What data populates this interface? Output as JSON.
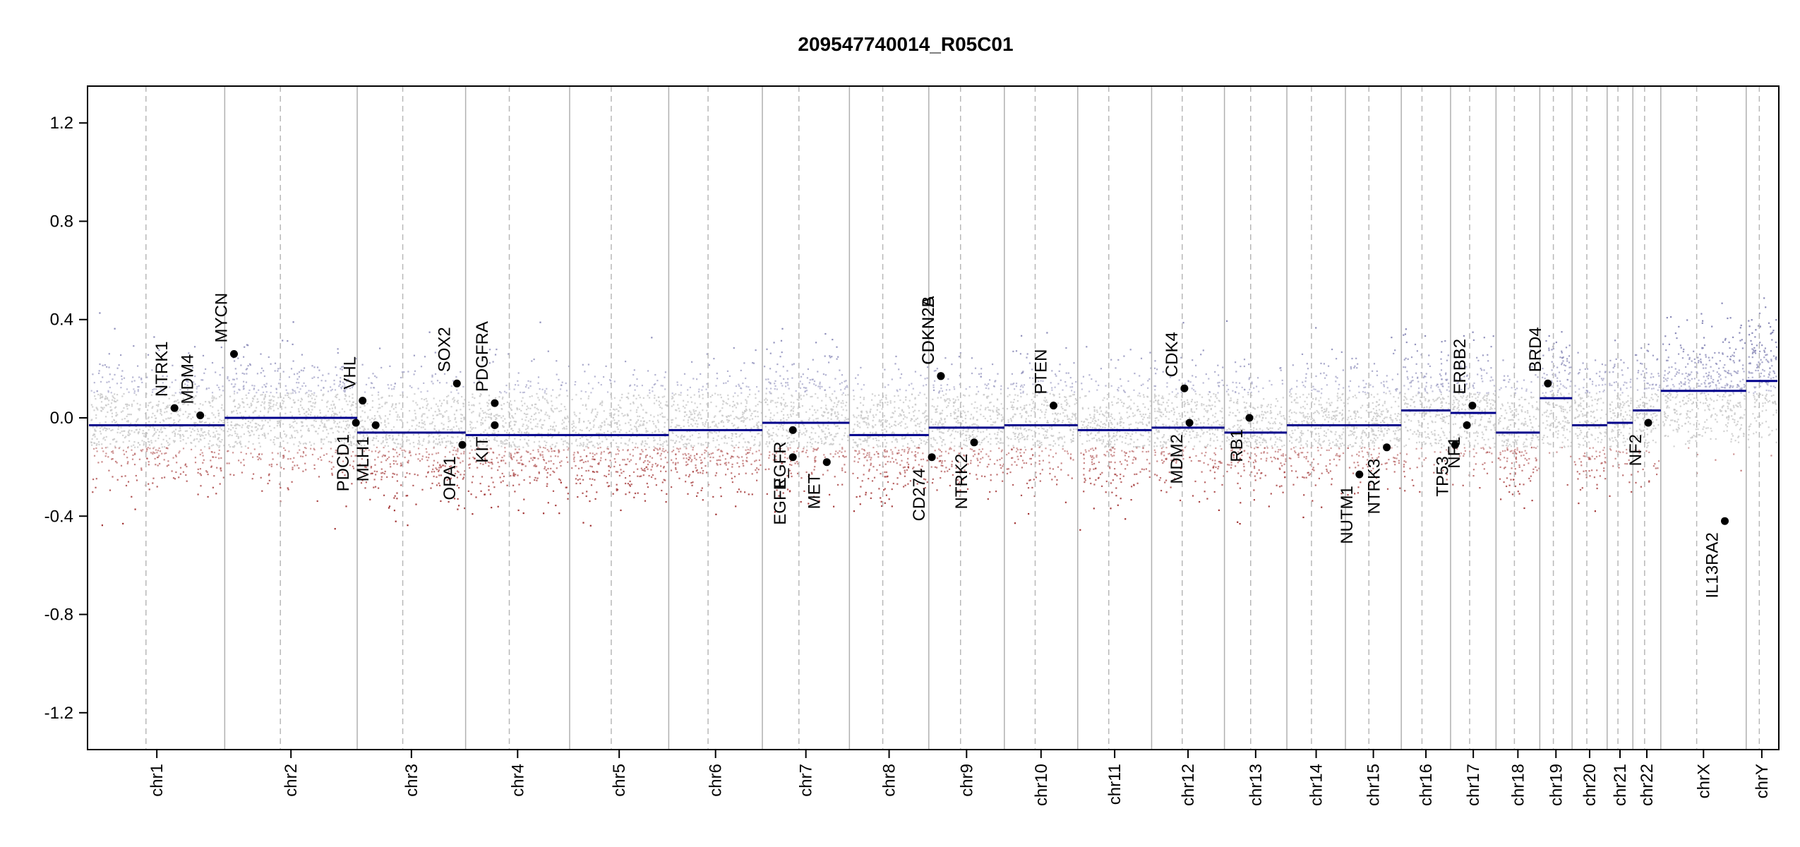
{
  "chart_data": {
    "type": "scatter",
    "title": "209547740014_R05C01",
    "xlabel": "",
    "ylabel": "",
    "ylim": [
      -1.35,
      1.35
    ],
    "yticks": [
      "1.2",
      "0.8",
      "0.4",
      "0.0",
      "-0.4",
      "-0.8",
      "-1.2"
    ],
    "grid": false,
    "colors": {
      "segment": "#00008b",
      "gain": "#8a8ab8",
      "neutral": "#c8c8c8",
      "loss": "#a03030",
      "boundary": "#b0b0b0",
      "centromere": "#b8b8b8",
      "gene_point": "#000000"
    },
    "chromosomes": [
      {
        "name": "chr1",
        "size": 248
      },
      {
        "name": "chr2",
        "size": 242
      },
      {
        "name": "chr3",
        "size": 198
      },
      {
        "name": "chr4",
        "size": 190
      },
      {
        "name": "chr5",
        "size": 181
      },
      {
        "name": "chr6",
        "size": 171
      },
      {
        "name": "chr7",
        "size": 159
      },
      {
        "name": "chr8",
        "size": 145
      },
      {
        "name": "chr9",
        "size": 138
      },
      {
        "name": "chr10",
        "size": 134
      },
      {
        "name": "chr11",
        "size": 135
      },
      {
        "name": "chr12",
        "size": 133
      },
      {
        "name": "chr13",
        "size": 114
      },
      {
        "name": "chr14",
        "size": 107
      },
      {
        "name": "chr15",
        "size": 102
      },
      {
        "name": "chr16",
        "size": 90
      },
      {
        "name": "chr17",
        "size": 83
      },
      {
        "name": "chr18",
        "size": 80
      },
      {
        "name": "chr19",
        "size": 59
      },
      {
        "name": "chr20",
        "size": 64
      },
      {
        "name": "chr21",
        "size": 47
      },
      {
        "name": "chr22",
        "size": 51
      },
      {
        "name": "chrX",
        "size": 156
      },
      {
        "name": "chrY",
        "size": 57
      }
    ],
    "segments": [
      {
        "chr": "chr1",
        "value": -0.03
      },
      {
        "chr": "chr2",
        "value": 0.0
      },
      {
        "chr": "chr3",
        "value": -0.06
      },
      {
        "chr": "chr4",
        "value": -0.07
      },
      {
        "chr": "chr5",
        "value": -0.07
      },
      {
        "chr": "chr6",
        "value": -0.05
      },
      {
        "chr": "chr7",
        "value": -0.02
      },
      {
        "chr": "chr8",
        "value": -0.07
      },
      {
        "chr": "chr9",
        "value": -0.04
      },
      {
        "chr": "chr10",
        "value": -0.03
      },
      {
        "chr": "chr11",
        "value": -0.05
      },
      {
        "chr": "chr12",
        "value": -0.04
      },
      {
        "chr": "chr13",
        "value": -0.06
      },
      {
        "chr": "chr14",
        "value": -0.03
      },
      {
        "chr": "chr15",
        "value": -0.03
      },
      {
        "chr": "chr16",
        "value": 0.03
      },
      {
        "chr": "chr17",
        "value": 0.02
      },
      {
        "chr": "chr18",
        "value": -0.06
      },
      {
        "chr": "chr19",
        "value": 0.08
      },
      {
        "chr": "chr20",
        "value": -0.03
      },
      {
        "chr": "chr21",
        "value": -0.02
      },
      {
        "chr": "chr22",
        "value": 0.03
      },
      {
        "chr": "chrX",
        "value": 0.11
      },
      {
        "chr": "chrY",
        "value": 0.15
      }
    ],
    "genes": [
      {
        "name": "NTRK1",
        "chr": "chr1",
        "pos": 0.63,
        "value": 0.04,
        "side": "above"
      },
      {
        "name": "MDM4",
        "chr": "chr1",
        "pos": 0.82,
        "value": 0.01,
        "side": "above"
      },
      {
        "name": "MYCN",
        "chr": "chr2",
        "pos": 0.07,
        "value": 0.26,
        "side": "above"
      },
      {
        "name": "VHL",
        "chr": "chr3",
        "pos": 0.05,
        "value": 0.07,
        "side": "above"
      },
      {
        "name": "PDCD1",
        "chr": "chr2",
        "pos": 0.99,
        "value": -0.02,
        "side": "below"
      },
      {
        "name": "MLH1",
        "chr": "chr3",
        "pos": 0.17,
        "value": -0.03,
        "side": "below"
      },
      {
        "name": "SOX2",
        "chr": "chr3",
        "pos": 0.92,
        "value": 0.14,
        "side": "above"
      },
      {
        "name": "OPA1",
        "chr": "chr3",
        "pos": 0.97,
        "value": -0.11,
        "side": "below"
      },
      {
        "name": "PDGFRA",
        "chr": "chr4",
        "pos": 0.28,
        "value": 0.06,
        "side": "above"
      },
      {
        "name": "KIT",
        "chr": "chr4",
        "pos": 0.28,
        "value": -0.03,
        "side": "below"
      },
      {
        "name": "EGFR",
        "chr": "chr7",
        "pos": 0.35,
        "value": -0.05,
        "side": "below"
      },
      {
        "name": "EGFR_",
        "chr": "chr7",
        "pos": 0.35,
        "value": -0.16,
        "side": "below"
      },
      {
        "name": "MET",
        "chr": "chr7",
        "pos": 0.74,
        "value": -0.18,
        "side": "below"
      },
      {
        "name": "CDKN2A",
        "chr": "chr9",
        "pos": 0.16,
        "value": 0.17,
        "side": "above"
      },
      {
        "name": "CDKN2B",
        "chr": "chr9",
        "pos": 0.16,
        "value": 0.17,
        "side": "above"
      },
      {
        "name": "CD274",
        "chr": "chr9",
        "pos": 0.04,
        "value": -0.16,
        "side": "below"
      },
      {
        "name": "NTRK2",
        "chr": "chr9",
        "pos": 0.6,
        "value": -0.1,
        "side": "below"
      },
      {
        "name": "PTEN",
        "chr": "chr10",
        "pos": 0.67,
        "value": 0.05,
        "side": "above"
      },
      {
        "name": "CDK4",
        "chr": "chr12",
        "pos": 0.45,
        "value": 0.12,
        "side": "above"
      },
      {
        "name": "MDM2",
        "chr": "chr12",
        "pos": 0.52,
        "value": -0.02,
        "side": "below"
      },
      {
        "name": "RB1",
        "chr": "chr13",
        "pos": 0.4,
        "value": 0.0,
        "side": "below"
      },
      {
        "name": "NUTM1",
        "chr": "chr15",
        "pos": 0.25,
        "value": -0.23,
        "side": "below"
      },
      {
        "name": "NTRK3",
        "chr": "chr15",
        "pos": 0.74,
        "value": -0.12,
        "side": "below"
      },
      {
        "name": "TP53",
        "chr": "chr17",
        "pos": 0.1,
        "value": -0.11,
        "side": "below"
      },
      {
        "name": "ERBB2",
        "chr": "chr17",
        "pos": 0.48,
        "value": 0.05,
        "side": "above"
      },
      {
        "name": "NF1",
        "chr": "chr17",
        "pos": 0.36,
        "value": -0.03,
        "side": "below"
      },
      {
        "name": "BRD4",
        "chr": "chr19",
        "pos": 0.25,
        "value": 0.14,
        "side": "above"
      },
      {
        "name": "NF2",
        "chr": "chr22",
        "pos": 0.55,
        "value": -0.02,
        "side": "below"
      },
      {
        "name": "IL13RA2",
        "chr": "chrX",
        "pos": 0.75,
        "value": -0.42,
        "side": "below"
      }
    ]
  }
}
